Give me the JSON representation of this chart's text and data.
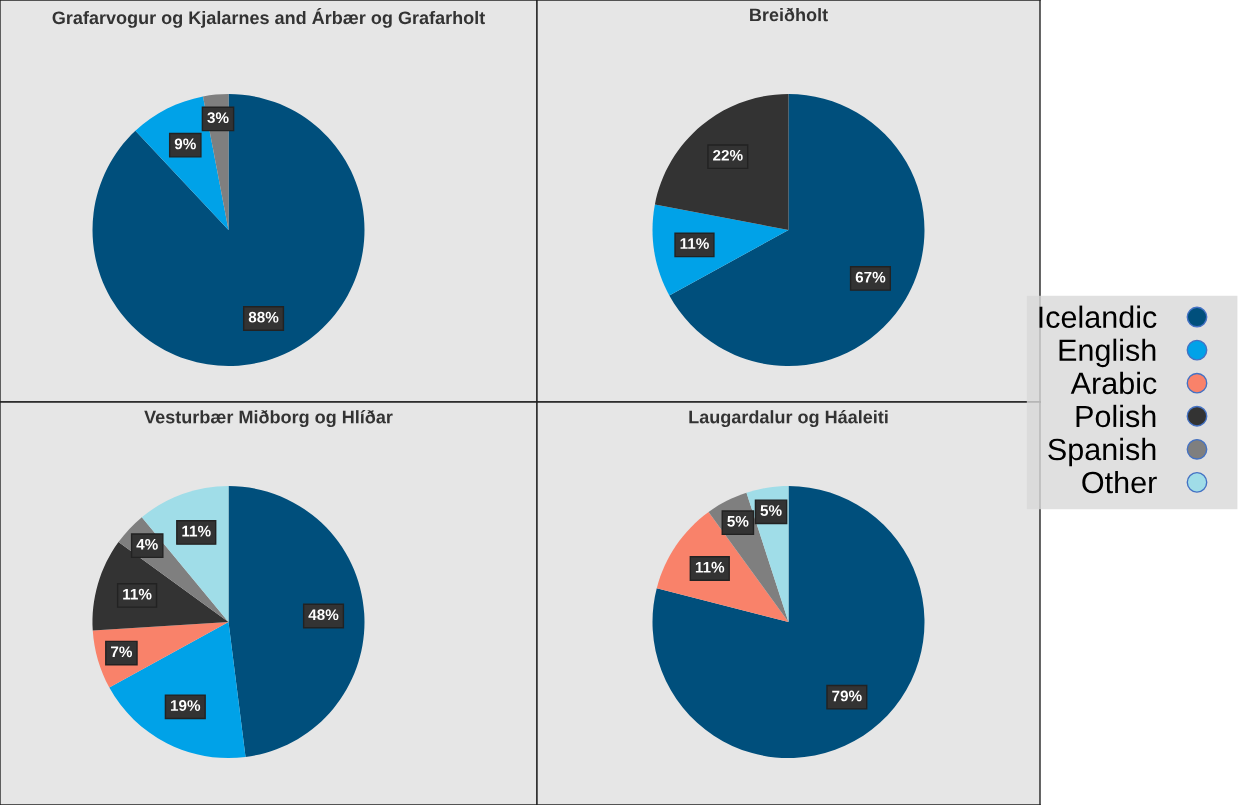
{
  "chart_data": [
    {
      "type": "pie",
      "title": "Grafarvogur og Kjalarnes and Árbær og Grafarholt",
      "categories": [
        "Icelandic",
        "English",
        "Arabic",
        "Polish",
        "Spanish",
        "Other"
      ],
      "values": [
        88,
        9,
        0,
        0,
        3,
        0
      ],
      "colors": [
        "#004f7c",
        "#00a2e8",
        "#f9826a",
        "#333333",
        "#7f7f7f",
        "#a0dde8"
      ],
      "value_labels": [
        "88%",
        "9%",
        null,
        null,
        "3%",
        null
      ],
      "legend": "right"
    },
    {
      "type": "pie",
      "title": "Breiðholt",
      "categories": [
        null,
        null,
        null,
        null,
        null,
        null
      ],
      "values": [
        67,
        11,
        0,
        22,
        0,
        0
      ],
      "colors": [
        "#004f7c",
        "#00a2e8",
        "#f9826a",
        "#333333",
        "#7f7f7f",
        "#a0dde8"
      ],
      "value_labels": [
        "67%",
        "11%",
        null,
        "22%",
        null,
        null
      ]
    },
    {
      "type": "pie",
      "title": "Vesturbær Miðborg og Hlíðar",
      "categories": [
        null,
        null,
        null,
        null,
        null,
        null
      ],
      "values": [
        48,
        19,
        7,
        11,
        4,
        11
      ],
      "colors": [
        "#004f7c",
        "#00a2e8",
        "#f9826a",
        "#333333",
        "#7f7f7f",
        "#a0dde8"
      ],
      "value_labels": [
        "48%",
        "19%",
        "7%",
        "11%",
        "4%",
        "11%"
      ]
    },
    {
      "type": "pie",
      "title": "Laugardalur og Háaleiti",
      "categories": [
        null,
        null,
        null,
        null,
        null,
        null
      ],
      "values": [
        79,
        0,
        11,
        0,
        5,
        5
      ],
      "colors": [
        "#004f7c",
        "#00a2e8",
        "#f9826a",
        "#333333",
        "#7f7f7f",
        "#a0dde8"
      ],
      "value_labels": [
        "79%",
        null,
        "11%",
        null,
        "5%",
        "5%"
      ]
    }
  ]
}
